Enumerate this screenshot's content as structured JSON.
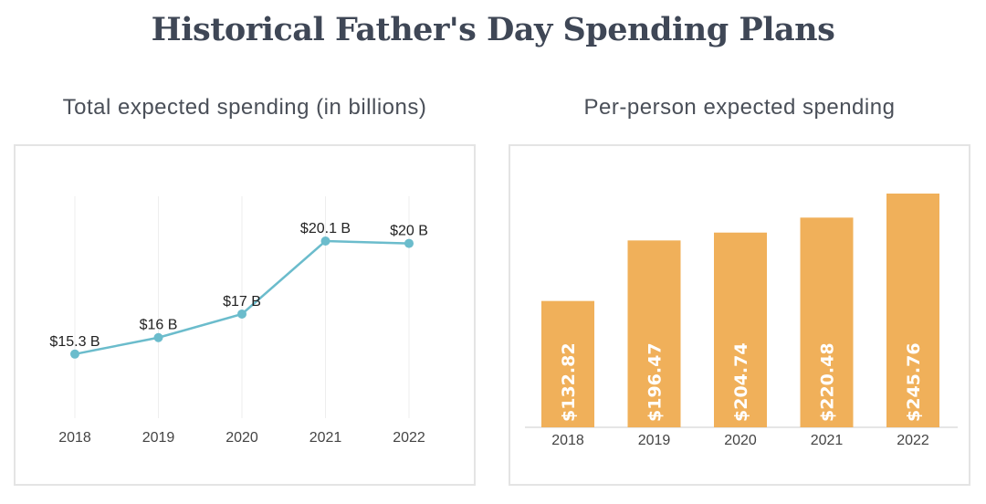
{
  "title": "Historical Father's Day Spending Plans",
  "chart_data": [
    {
      "type": "line",
      "title": "Total expected spending (in billions)",
      "categories": [
        "2018",
        "2019",
        "2020",
        "2021",
        "2022"
      ],
      "values": [
        15.3,
        16,
        17,
        20.1,
        20
      ],
      "data_labels": [
        "$15.3 B",
        "$16 B",
        "$17 B",
        "$20.1 B",
        "$20 B"
      ],
      "ylim": [
        12.5,
        22.0
      ],
      "grid": "vertical",
      "color": "#6bbccc"
    },
    {
      "type": "bar",
      "title": "Per-person expected spending",
      "categories": [
        "2018",
        "2019",
        "2020",
        "2021",
        "2022"
      ],
      "values": [
        132.82,
        196.47,
        204.74,
        220.48,
        245.76
      ],
      "data_labels": [
        "$132.82",
        "$196.47",
        "$204.74",
        "$220.48",
        "$245.76"
      ],
      "ylim": [
        0,
        245.76
      ],
      "color": "#f0b05a"
    }
  ]
}
